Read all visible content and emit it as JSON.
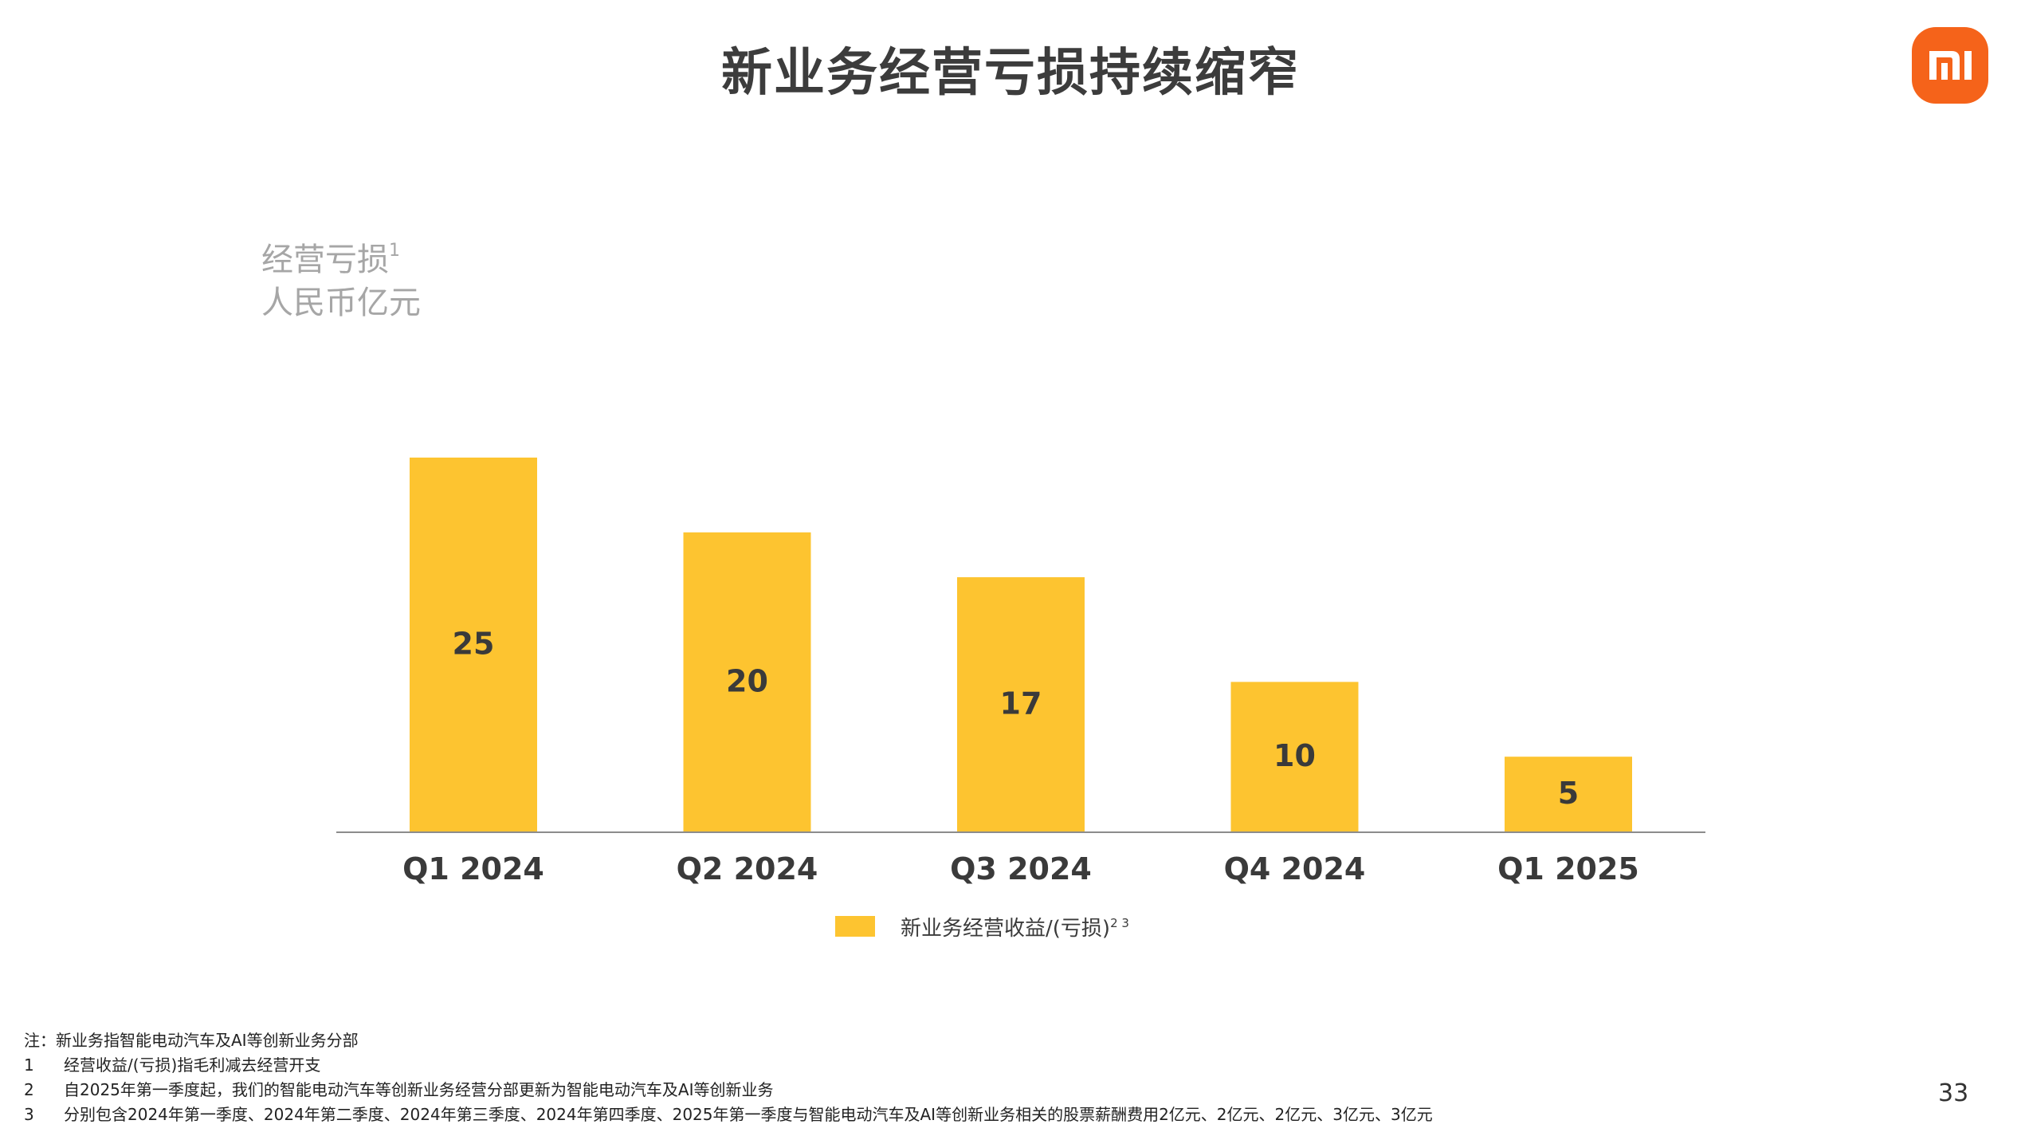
{
  "page": {
    "title": "新业务经营亏损持续缩窄",
    "page_number": "33",
    "logo_text": "mi"
  },
  "colors": {
    "bar": "#fdc430",
    "logo_bg": "#f5631a",
    "axis": "#8c8c8c"
  },
  "chart_data": {
    "type": "bar",
    "title": "新业务经营亏损持续缩窄",
    "ylabel_line1": "经营亏损",
    "ylabel_sup": "1",
    "ylabel_line2": "人民币亿元",
    "categories": [
      "Q1 2024",
      "Q2 2024",
      "Q3 2024",
      "Q4 2024",
      "Q1 2025"
    ],
    "series": [
      {
        "name": "新业务经营收益/(亏损)",
        "name_sup": "2 3",
        "values": [
          25,
          20,
          17,
          10,
          5
        ]
      }
    ],
    "data_labels": [
      "25",
      "20",
      "17",
      "10",
      "5"
    ],
    "ylim": [
      0,
      25
    ],
    "grid": false,
    "legend": "bottom-center"
  },
  "notes": [
    {
      "num": "",
      "text": "注：新业务指智能电动汽车及AI等创新业务分部"
    },
    {
      "num": "1",
      "text": "经营收益/(亏损)指毛利减去经营开支"
    },
    {
      "num": "2",
      "text": "自2025年第一季度起，我们的智能电动汽车等创新业务经营分部更新为智能电动汽车及AI等创新业务"
    },
    {
      "num": "3",
      "text": "分别包含2024年第一季度、2024年第二季度、2024年第三季度、2024年第四季度、2025年第一季度与智能电动汽车及AI等创新业务相关的股票薪酬费用2亿元、2亿元、2亿元、3亿元、3亿元"
    }
  ]
}
